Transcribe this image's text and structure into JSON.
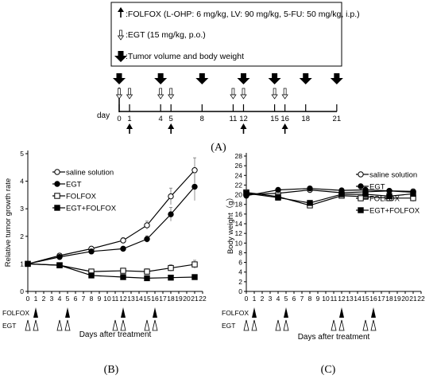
{
  "legend_box": {
    "folfox": ":FOLFOX (L-OHP: 6 mg/kg, LV: 90 mg/kg, 5-FU: 50 mg/kg, i.p.)",
    "egt": ":EGT (15 mg/kg, p.o.)",
    "tumor": ":Tumor volume and body weight"
  },
  "schedule": {
    "day_label": "day",
    "days": [
      0,
      1,
      4,
      5,
      8,
      11,
      12,
      15,
      16,
      18,
      21
    ],
    "big_arrow_days": [
      0,
      4,
      8,
      12,
      15,
      18,
      21
    ],
    "egt_days": [
      0,
      1,
      4,
      5,
      11,
      12,
      15,
      16
    ],
    "folfox_days": [
      1,
      5,
      12,
      16
    ]
  },
  "panel_labels": {
    "a": "(A)",
    "b": "(B)",
    "c": "(C)"
  },
  "treatment_rows": {
    "folfox": "FOLFOX",
    "egt": "EGT"
  },
  "chart_data": [
    {
      "type": "line",
      "ylabel": "Relative tumor growth rate",
      "xlabel": "Days after treatment",
      "x_ticks": [
        0,
        1,
        2,
        3,
        4,
        5,
        6,
        7,
        8,
        9,
        10,
        11,
        12,
        13,
        14,
        15,
        16,
        17,
        18,
        19,
        20,
        21,
        22
      ],
      "y_ticks": [
        0,
        1,
        2,
        3,
        4,
        5
      ],
      "xlim": [
        0,
        22
      ],
      "ylim": [
        0,
        5
      ],
      "legend": "top-left",
      "x": [
        0,
        4,
        8,
        12,
        15,
        18,
        21
      ],
      "series": [
        {
          "name": "saline solution",
          "marker": "open-circle",
          "values": [
            1.0,
            1.3,
            1.55,
            1.85,
            2.4,
            3.45,
            4.4
          ],
          "err": [
            0,
            0.05,
            0.08,
            0.1,
            0.15,
            0.3,
            0.45
          ]
        },
        {
          "name": "EGT",
          "marker": "filled-circle",
          "values": [
            1.0,
            1.25,
            1.45,
            1.55,
            1.9,
            2.8,
            3.8
          ],
          "err": [
            0,
            0.05,
            0.08,
            0.08,
            0.12,
            0.25,
            0.5
          ]
        },
        {
          "name": "FOLFOX",
          "marker": "open-square",
          "values": [
            1.0,
            0.95,
            0.72,
            0.75,
            0.72,
            0.85,
            0.98
          ],
          "err": [
            0,
            0.05,
            0.05,
            0.08,
            0.1,
            0.12,
            0.15
          ]
        },
        {
          "name": "EGT+FOLFOX",
          "marker": "filled-square",
          "values": [
            1.0,
            0.95,
            0.58,
            0.52,
            0.48,
            0.5,
            0.52
          ],
          "err": [
            0,
            0.04,
            0.05,
            0.05,
            0.05,
            0.05,
            0.05
          ]
        }
      ],
      "folfox_days": [
        1,
        5,
        12,
        16
      ],
      "egt_days": [
        0,
        1,
        4,
        5,
        11,
        12,
        15,
        16
      ]
    },
    {
      "type": "line",
      "ylabel": "Body weight（g）",
      "xlabel": "Days after treatment",
      "x_ticks": [
        0,
        1,
        2,
        3,
        4,
        5,
        6,
        7,
        8,
        9,
        10,
        11,
        12,
        13,
        14,
        15,
        16,
        17,
        18,
        19,
        20,
        21,
        22
      ],
      "y_ticks": [
        0,
        2,
        4,
        6,
        8,
        10,
        12,
        14,
        16,
        18,
        20,
        22,
        24,
        26,
        28
      ],
      "xlim": [
        0,
        22
      ],
      "ylim": [
        0,
        28
      ],
      "legend": "top-right",
      "x": [
        0,
        4,
        8,
        12,
        15,
        18,
        21
      ],
      "series": [
        {
          "name": "saline solution",
          "marker": "open-circle",
          "values": [
            20.0,
            20.3,
            21.0,
            20.4,
            20.6,
            20.8,
            20.7
          ],
          "err": [
            0.3,
            0.3,
            0.3,
            0.3,
            0.3,
            0.3,
            0.3
          ]
        },
        {
          "name": "EGT",
          "marker": "filled-circle",
          "values": [
            19.8,
            21.0,
            21.3,
            20.9,
            21.0,
            20.8,
            20.5
          ],
          "err": [
            0.3,
            0.3,
            0.3,
            0.3,
            0.3,
            0.3,
            0.3
          ]
        },
        {
          "name": "FOLFOX",
          "marker": "open-square",
          "values": [
            20.5,
            19.6,
            17.8,
            19.8,
            19.6,
            19.3,
            19.3
          ],
          "err": [
            0.4,
            0.4,
            0.5,
            0.5,
            0.6,
            0.6,
            0.7
          ]
        },
        {
          "name": "EGT+FOLFOX",
          "marker": "filled-square",
          "values": [
            20.3,
            19.4,
            18.3,
            20.1,
            20.1,
            19.7,
            20.2
          ],
          "err": [
            0.4,
            0.4,
            0.5,
            0.4,
            0.4,
            0.4,
            0.4
          ]
        }
      ],
      "folfox_days": [
        1,
        5,
        12,
        16
      ],
      "egt_days": [
        0,
        1,
        4,
        5,
        11,
        12,
        15,
        16
      ]
    }
  ]
}
